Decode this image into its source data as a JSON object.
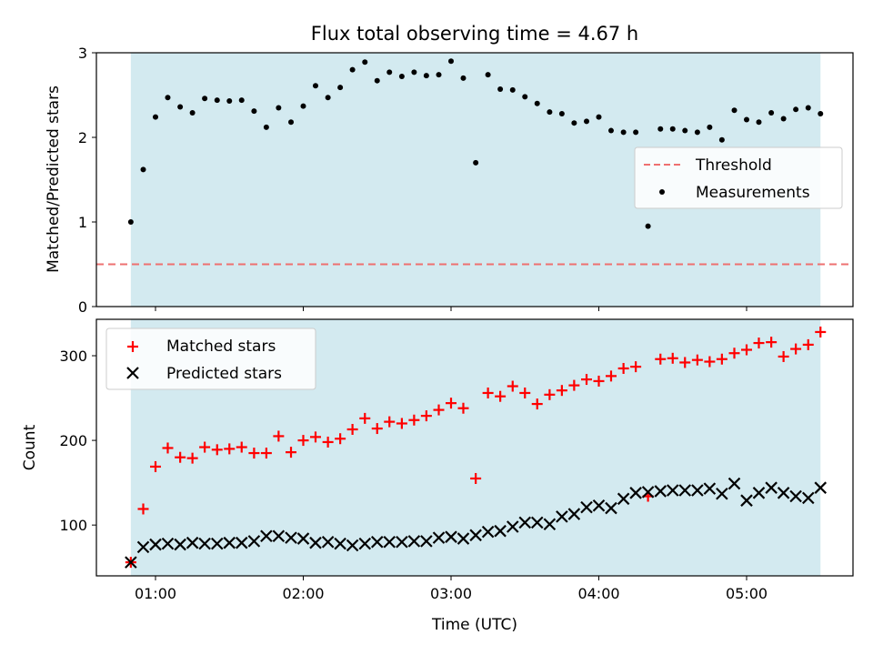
{
  "chart_data": [
    {
      "type": "scatter",
      "title": "Flux total observing time = 4.67 h",
      "xlabel": "",
      "ylabel": "Matched/Predicted stars",
      "ylim": [
        0,
        3
      ],
      "yticks": [
        "0",
        "1",
        "2",
        "3"
      ],
      "x_unit": "hours (UTC)",
      "xlim": [
        0.6,
        5.72
      ],
      "shaded_span": [
        0.833,
        5.5
      ],
      "shade_color": "#d3eaf0",
      "threshold": {
        "name": "Threshold",
        "value": 0.5,
        "color": "#ee7070",
        "style": "dashed"
      },
      "legend": {
        "position": "center-right",
        "entries": [
          "Threshold",
          "Measurements"
        ]
      },
      "series": [
        {
          "name": "Measurements",
          "marker": "dot",
          "color": "#000000",
          "x": [
            0.833,
            0.917,
            1.0,
            1.083,
            1.167,
            1.25,
            1.333,
            1.417,
            1.5,
            1.583,
            1.667,
            1.75,
            1.833,
            1.917,
            2.0,
            2.083,
            2.167,
            2.25,
            2.333,
            2.417,
            2.5,
            2.583,
            2.667,
            2.75,
            2.833,
            2.917,
            3.0,
            3.083,
            3.167,
            3.25,
            3.333,
            3.417,
            3.5,
            3.583,
            3.667,
            3.75,
            3.833,
            3.917,
            4.0,
            4.083,
            4.167,
            4.25,
            4.333,
            4.417,
            4.5,
            4.583,
            4.667,
            4.75,
            4.833,
            4.917,
            5.0,
            5.083,
            5.167,
            5.25,
            5.333,
            5.417,
            5.5
          ],
          "y": [
            1.0,
            1.62,
            2.24,
            2.47,
            2.36,
            2.29,
            2.46,
            2.44,
            2.43,
            2.44,
            2.31,
            2.12,
            2.35,
            2.18,
            2.37,
            2.61,
            2.47,
            2.59,
            2.8,
            2.89,
            2.67,
            2.77,
            2.72,
            2.77,
            2.73,
            2.74,
            2.9,
            2.7,
            1.7,
            2.74,
            2.57,
            2.56,
            2.48,
            2.4,
            2.3,
            2.28,
            2.17,
            2.19,
            2.24,
            2.08,
            2.06,
            2.06,
            0.95,
            2.1,
            2.1,
            2.08,
            2.06,
            2.12,
            1.97,
            2.32,
            2.21,
            2.18,
            2.29,
            2.22,
            2.33,
            2.35,
            2.28
          ]
        }
      ]
    },
    {
      "type": "scatter",
      "title": "",
      "xlabel": "Time (UTC)",
      "ylabel": "Count",
      "ylim": [
        40,
        343
      ],
      "yticks": [
        "100",
        "200",
        "300"
      ],
      "xticks": [
        "01:00",
        "02:00",
        "03:00",
        "04:00",
        "05:00"
      ],
      "xlim": [
        0.6,
        5.72
      ],
      "shaded_span": [
        0.833,
        5.5
      ],
      "shade_color": "#d3eaf0",
      "legend": {
        "position": "top-left",
        "entries": [
          "Matched stars",
          "Predicted stars"
        ]
      },
      "series": [
        {
          "name": "Matched stars",
          "marker": "plus",
          "color": "#ff0000",
          "x": [
            0.833,
            0.917,
            1.0,
            1.083,
            1.167,
            1.25,
            1.333,
            1.417,
            1.5,
            1.583,
            1.667,
            1.75,
            1.833,
            1.917,
            2.0,
            2.083,
            2.167,
            2.25,
            2.333,
            2.417,
            2.5,
            2.583,
            2.667,
            2.75,
            2.833,
            2.917,
            3.0,
            3.083,
            3.167,
            3.25,
            3.333,
            3.417,
            3.5,
            3.583,
            3.667,
            3.75,
            3.833,
            3.917,
            4.0,
            4.083,
            4.167,
            4.25,
            4.333,
            4.417,
            4.5,
            4.583,
            4.667,
            4.75,
            4.833,
            4.917,
            5.0,
            5.083,
            5.167,
            5.25,
            5.333,
            5.417,
            5.5
          ],
          "y": [
            56,
            119,
            169,
            191,
            180,
            179,
            192,
            189,
            190,
            192,
            185,
            185,
            205,
            186,
            200,
            204,
            198,
            202,
            213,
            226,
            214,
            222,
            220,
            224,
            229,
            236,
            244,
            238,
            155,
            256,
            252,
            264,
            256,
            243,
            254,
            259,
            265,
            272,
            270,
            276,
            285,
            287,
            134,
            296,
            297,
            292,
            295,
            293,
            296,
            303,
            307,
            315,
            316,
            299,
            308,
            313,
            328
          ]
        },
        {
          "name": "Predicted stars",
          "marker": "cross",
          "color": "#000000",
          "x": [
            0.833,
            0.917,
            1.0,
            1.083,
            1.167,
            1.25,
            1.333,
            1.417,
            1.5,
            1.583,
            1.667,
            1.75,
            1.833,
            1.917,
            2.0,
            2.083,
            2.167,
            2.25,
            2.333,
            2.417,
            2.5,
            2.583,
            2.667,
            2.75,
            2.833,
            2.917,
            3.0,
            3.083,
            3.167,
            3.25,
            3.333,
            3.417,
            3.5,
            3.583,
            3.667,
            3.75,
            3.833,
            3.917,
            4.0,
            4.083,
            4.167,
            4.25,
            4.333,
            4.417,
            4.5,
            4.583,
            4.667,
            4.75,
            4.833,
            4.917,
            5.0,
            5.083,
            5.167,
            5.25,
            5.333,
            5.417,
            5.5
          ],
          "y": [
            56,
            74,
            77,
            78,
            77,
            79,
            78,
            78,
            79,
            79,
            81,
            87,
            87,
            85,
            84,
            79,
            80,
            78,
            76,
            78,
            80,
            80,
            80,
            81,
            81,
            85,
            86,
            84,
            88,
            92,
            93,
            98,
            103,
            103,
            101,
            110,
            113,
            121,
            123,
            120,
            131,
            138,
            139,
            140,
            141,
            141,
            141,
            143,
            137,
            149,
            129,
            138,
            144,
            138,
            134,
            132,
            144
          ]
        }
      ]
    }
  ]
}
